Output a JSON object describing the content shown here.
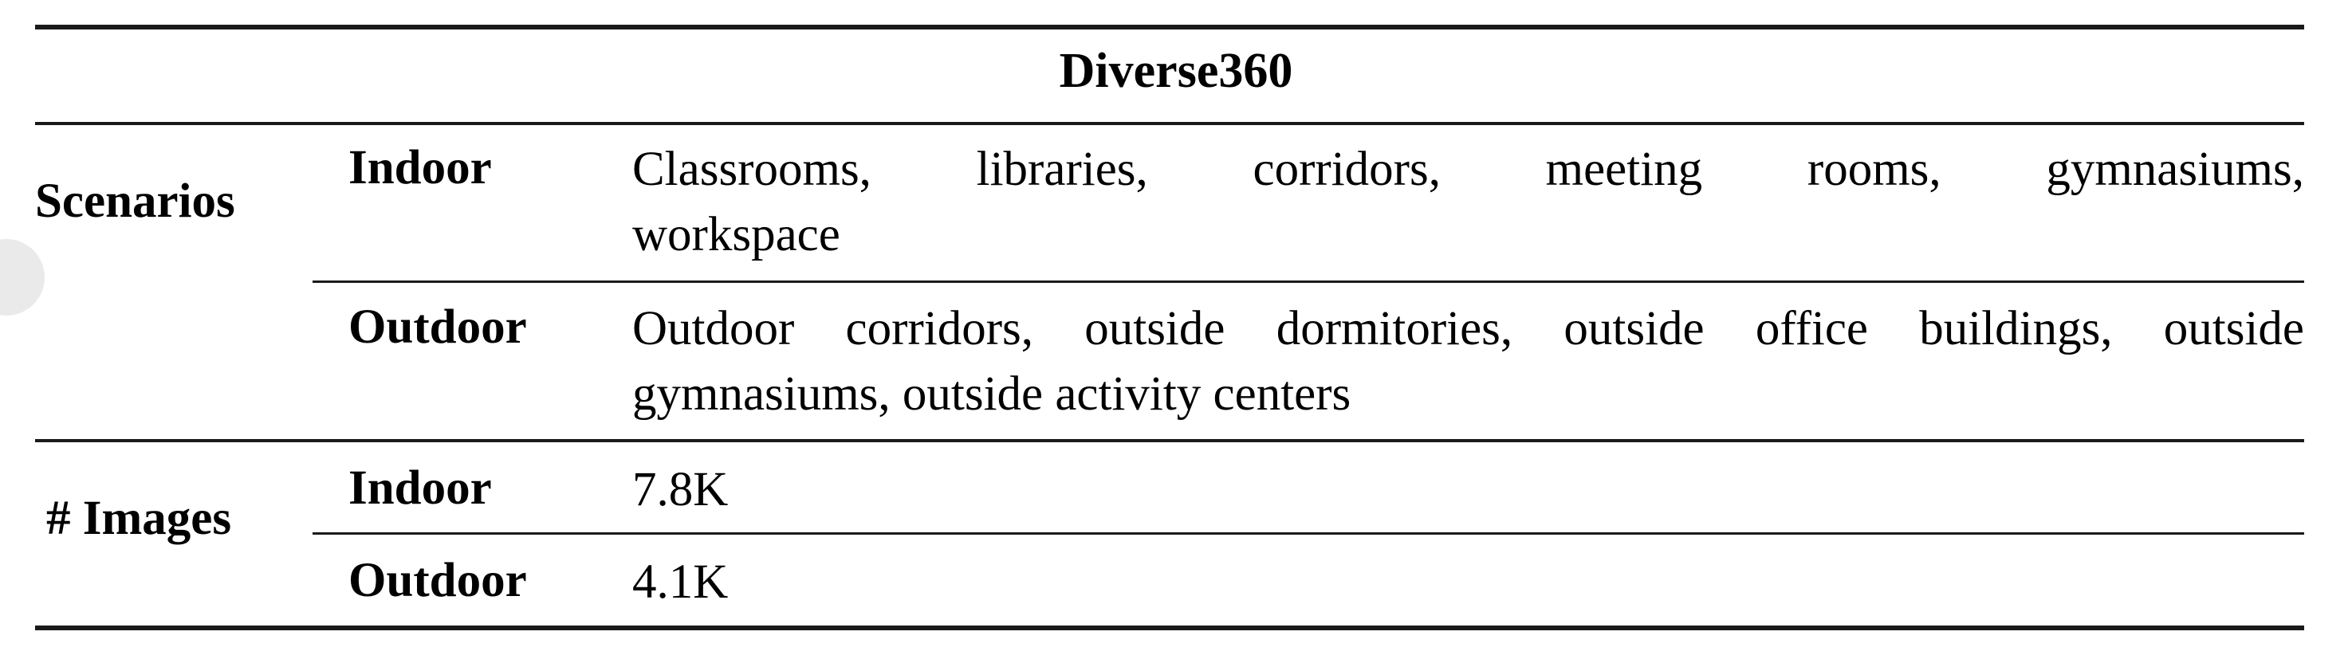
{
  "table": {
    "title": "Diverse360",
    "groups": [
      {
        "label": "Scenarios",
        "rows": [
          {
            "sublabel": "Indoor",
            "value_lines": [
              "Classrooms, libraries, corridors, meeting rooms, gymnasiums,",
              "workspace"
            ]
          },
          {
            "sublabel": "Outdoor",
            "value_lines": [
              "Outdoor corridors, outside dormitories, outside office buildings, outside",
              "gymnasiums, outside activity centers"
            ]
          }
        ]
      },
      {
        "label": "# Images",
        "rows": [
          {
            "sublabel": "Indoor",
            "value": "7.8K"
          },
          {
            "sublabel": "Outdoor",
            "value": "4.1K"
          }
        ]
      }
    ]
  }
}
